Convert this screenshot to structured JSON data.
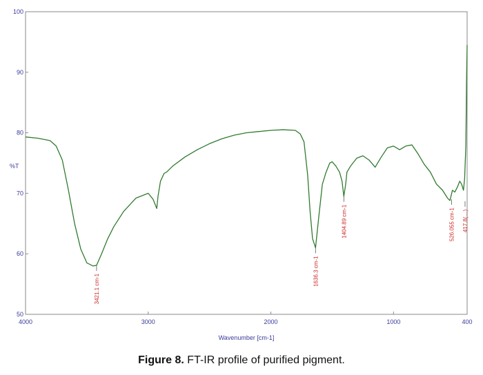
{
  "chart_data": {
    "type": "line",
    "title": "",
    "xlabel": "Wavenumber [cm-1]",
    "ylabel": "%T",
    "xlim": [
      4000,
      400
    ],
    "ylim": [
      50,
      100
    ],
    "x_reversed": true,
    "x_ticks": [
      4000,
      3000,
      2000,
      1000,
      400
    ],
    "y_ticks": [
      50,
      60,
      70,
      80,
      90,
      100
    ],
    "grid": false,
    "line_color": "#2f7a2f",
    "peak_color": "#cc2a2a",
    "series": [
      {
        "x": [
          4000,
          3900,
          3800,
          3750,
          3700,
          3650,
          3600,
          3550,
          3500,
          3450,
          3421,
          3380,
          3330,
          3280,
          3200,
          3100,
          3000,
          2960,
          2930,
          2920,
          2900,
          2870,
          2850,
          2800,
          2700,
          2600,
          2500,
          2400,
          2300,
          2200,
          2100,
          2000,
          1900,
          1800,
          1760,
          1730,
          1700,
          1680,
          1660,
          1636,
          1610,
          1580,
          1550,
          1520,
          1500,
          1470,
          1440,
          1420,
          1405,
          1390,
          1380,
          1350,
          1300,
          1250,
          1200,
          1150,
          1100,
          1050,
          1000,
          950,
          900,
          850,
          800,
          750,
          700,
          650,
          600,
          560,
          540,
          520,
          500,
          480,
          460,
          445,
          430,
          420,
          410,
          405,
          400
        ],
        "y": [
          79.3,
          79.1,
          78.7,
          77.8,
          75.5,
          70.5,
          65.0,
          60.8,
          58.5,
          58.0,
          58.1,
          60.0,
          62.5,
          64.5,
          67.0,
          69.2,
          70.0,
          69.0,
          67.5,
          69.5,
          72.0,
          73.3,
          73.5,
          74.5,
          76.0,
          77.2,
          78.2,
          79.0,
          79.6,
          80.0,
          80.2,
          80.4,
          80.5,
          80.4,
          79.8,
          78.5,
          73.0,
          67.0,
          62.5,
          61.0,
          66.0,
          71.5,
          73.5,
          75.0,
          75.2,
          74.5,
          73.5,
          72.0,
          69.5,
          71.5,
          73.5,
          74.5,
          75.8,
          76.2,
          75.5,
          74.3,
          76.0,
          77.5,
          77.8,
          77.2,
          77.8,
          78.0,
          76.5,
          74.8,
          73.5,
          71.5,
          70.5,
          69.2,
          68.8,
          70.5,
          70.2,
          71.0,
          72.0,
          71.5,
          70.5,
          72.5,
          78.0,
          88.0,
          94.5
        ]
      }
    ],
    "peaks": [
      {
        "x": 3421,
        "y": 58.1,
        "label": "3421.1 cm-1"
      },
      {
        "x": 1636,
        "y": 61.0,
        "label": "1636.3 cm-1"
      },
      {
        "x": 1405,
        "y": 69.5,
        "label": "1404.89 cm-1"
      },
      {
        "x": 526,
        "y": 69.0,
        "label": "526.055 cm-1"
      },
      {
        "x": 417,
        "y": 68.7,
        "label": "417.8(…)"
      }
    ]
  },
  "caption": {
    "label": "Figure 8.",
    "text": " FT-IR profile of purified pigment."
  }
}
